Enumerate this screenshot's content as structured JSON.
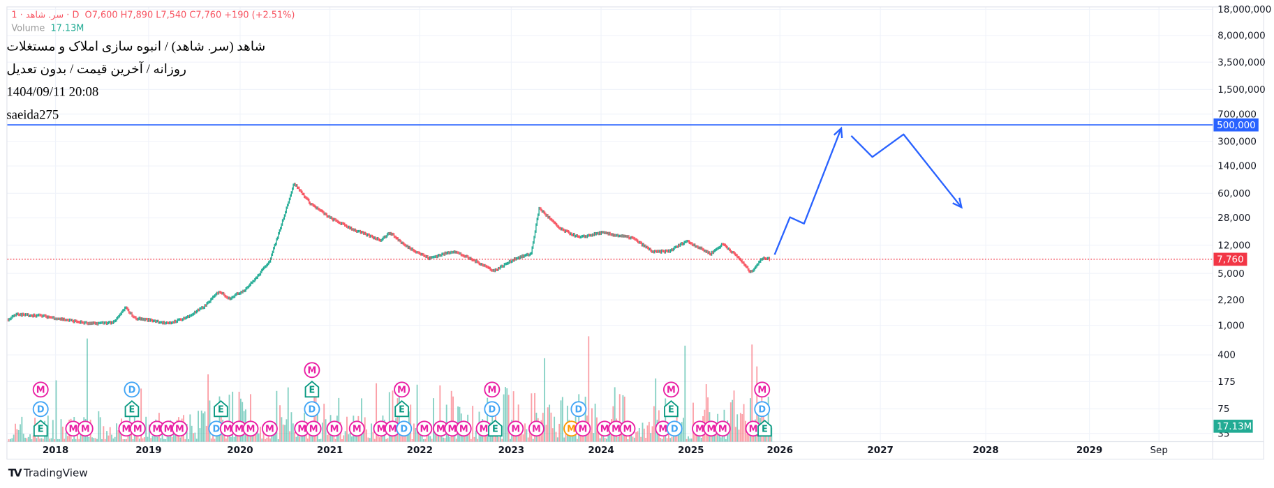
{
  "legend": {
    "symbol_line": "1 · سر. شاهد · D",
    "ohlc": "O7,600  H7,890  L7,540  C7,760  +190 (+2.51%)",
    "volume_label": "Volume",
    "volume_value": "17.13M"
  },
  "overlay": {
    "title": "شاهد (سر. شاهد) / انبوه سازی املاک و مستغلات",
    "subtitle": "روزانه / آخرین قیمت / بدون تعدیل",
    "datetime": "1404/09/11 20:08",
    "author": "saeida275"
  },
  "brand": "TradingView",
  "colors": {
    "up": "#22ab94",
    "down": "#f7525f",
    "drawing": "#2962ff",
    "last_price": "#f23645",
    "volume_badge": "#22ab94",
    "event_m": "#e91ea3",
    "event_d": "#42a5f5",
    "event_e": "#089981",
    "grid": "#f0f3fa"
  },
  "chart_data": {
    "type": "candlestick",
    "scale": "log",
    "grid": true,
    "x_ticks": [
      "2018",
      "2019",
      "2020",
      "2021",
      "2022",
      "2023",
      "2024",
      "2025",
      "2026",
      "2027",
      "2028",
      "2029",
      "Sep"
    ],
    "y_ticks": [
      "18,000,000",
      "8,000,000",
      "3,500,000",
      "1,500,000",
      "700,000",
      "300,000",
      "140,000",
      "60,000",
      "28,000",
      "12,000",
      "5,000",
      "2,200",
      "1,000",
      "400",
      "175",
      "75",
      "35"
    ],
    "y_tick_values": [
      18000000,
      8000000,
      3500000,
      1500000,
      700000,
      300000,
      140000,
      60000,
      28000,
      12000,
      5000,
      2200,
      1000,
      400,
      175,
      75,
      35
    ],
    "last_price": 7760,
    "last_price_label": "7,760",
    "horizontal_line": 500000,
    "horizontal_line_label": "500,000",
    "last_volume_label": "17.13M",
    "price_path": [
      [
        2017.49,
        1200
      ],
      [
        2017.58,
        1400
      ],
      [
        2017.84,
        1350
      ],
      [
        2018.37,
        1050
      ],
      [
        2018.63,
        1100
      ],
      [
        2018.75,
        1740
      ],
      [
        2018.85,
        1250
      ],
      [
        2019.07,
        1150
      ],
      [
        2019.21,
        1050
      ],
      [
        2019.43,
        1300
      ],
      [
        2019.61,
        1800
      ],
      [
        2019.77,
        2880
      ],
      [
        2019.88,
        2300
      ],
      [
        2020.05,
        3000
      ],
      [
        2020.19,
        4500
      ],
      [
        2020.33,
        7500
      ],
      [
        2020.42,
        16000
      ],
      [
        2020.6,
        82000
      ],
      [
        2020.78,
        44000
      ],
      [
        2021.0,
        28000
      ],
      [
        2021.28,
        19000
      ],
      [
        2021.56,
        14100
      ],
      [
        2021.67,
        17700
      ],
      [
        2021.83,
        12000
      ],
      [
        2022.1,
        8000
      ],
      [
        2022.37,
        10000
      ],
      [
        2022.68,
        6630
      ],
      [
        2022.81,
        5400
      ],
      [
        2023.04,
        7900
      ],
      [
        2023.22,
        9200
      ],
      [
        2023.31,
        38000
      ],
      [
        2023.54,
        20000
      ],
      [
        2023.76,
        15200
      ],
      [
        2024.0,
        17700
      ],
      [
        2024.35,
        15000
      ],
      [
        2024.58,
        9700
      ],
      [
        2024.76,
        10000
      ],
      [
        2024.95,
        13700
      ],
      [
        2025.22,
        9200
      ],
      [
        2025.36,
        12500
      ],
      [
        2025.54,
        8000
      ],
      [
        2025.67,
        5150
      ],
      [
        2025.81,
        8200
      ],
      [
        2025.89,
        7760
      ]
    ],
    "forecast_paths": [
      [
        [
          2025.94,
          8950
        ],
        [
          2026.1,
          28600
        ],
        [
          2026.24,
          23400
        ],
        [
          2026.61,
          450000
        ]
      ],
      [
        [
          2026.71,
          357000
        ],
        [
          2026.92,
          185000
        ],
        [
          2027.22,
          373000
        ],
        [
          2027.77,
          38800
        ]
      ]
    ],
    "events": [
      [
        2017.84,
        "E",
        0
      ],
      [
        2017.84,
        "D",
        1
      ],
      [
        2017.84,
        "M",
        2
      ],
      [
        2018.19,
        "M",
        0
      ],
      [
        2018.32,
        "M",
        0
      ],
      [
        2018.76,
        "M",
        0
      ],
      [
        2018.82,
        "M",
        0
      ],
      [
        2018.82,
        "E",
        1
      ],
      [
        2018.82,
        "D",
        2
      ],
      [
        2019.09,
        "M",
        0
      ],
      [
        2019.21,
        "M",
        0
      ],
      [
        2019.29,
        "M",
        0
      ],
      [
        2019.74,
        "D",
        0
      ],
      [
        2019.79,
        "M",
        0
      ],
      [
        2019.79,
        "E",
        1
      ],
      [
        2019.83,
        "M",
        0
      ],
      [
        2020.07,
        "M",
        0
      ],
      [
        2020.33,
        "M",
        0
      ],
      [
        2020.69,
        "M",
        0
      ],
      [
        2020.8,
        "M",
        0
      ],
      [
        2020.8,
        "D",
        1
      ],
      [
        2020.8,
        "E",
        2
      ],
      [
        2020.8,
        "M",
        3
      ],
      [
        2021.05,
        "M",
        0
      ],
      [
        2021.3,
        "M",
        0
      ],
      [
        2021.57,
        "M",
        0
      ],
      [
        2021.66,
        "M",
        0
      ],
      [
        2021.8,
        "D",
        0
      ],
      [
        2021.8,
        "E",
        1
      ],
      [
        2021.8,
        "M",
        2
      ],
      [
        2022.05,
        "M",
        0
      ],
      [
        2022.23,
        "M",
        0
      ],
      [
        2022.32,
        "M",
        0
      ],
      [
        2022.47,
        "M",
        0
      ],
      [
        2022.7,
        "M",
        0
      ],
      [
        2022.79,
        "E",
        0
      ],
      [
        2022.79,
        "D",
        1
      ],
      [
        2022.79,
        "M",
        2
      ],
      [
        2023.05,
        "M",
        0
      ],
      [
        2023.28,
        "M",
        0
      ],
      [
        2023.67,
        "M",
        0,
        "#ff9800"
      ],
      [
        2023.76,
        "M",
        0
      ],
      [
        2023.75,
        "D",
        1
      ],
      [
        2024.04,
        "M",
        0
      ],
      [
        2024.13,
        "M",
        0
      ],
      [
        2024.29,
        "M",
        0
      ],
      [
        2024.69,
        "M",
        0
      ],
      [
        2024.78,
        "D",
        0
      ],
      [
        2024.78,
        "E",
        1
      ],
      [
        2024.78,
        "M",
        2
      ],
      [
        2025.1,
        "M",
        0
      ],
      [
        2025.19,
        "M",
        0
      ],
      [
        2025.31,
        "M",
        0
      ],
      [
        2025.7,
        "M",
        0
      ],
      [
        2025.8,
        "E",
        0
      ],
      [
        2025.8,
        "D",
        1
      ],
      [
        2025.8,
        "M",
        2
      ]
    ]
  }
}
